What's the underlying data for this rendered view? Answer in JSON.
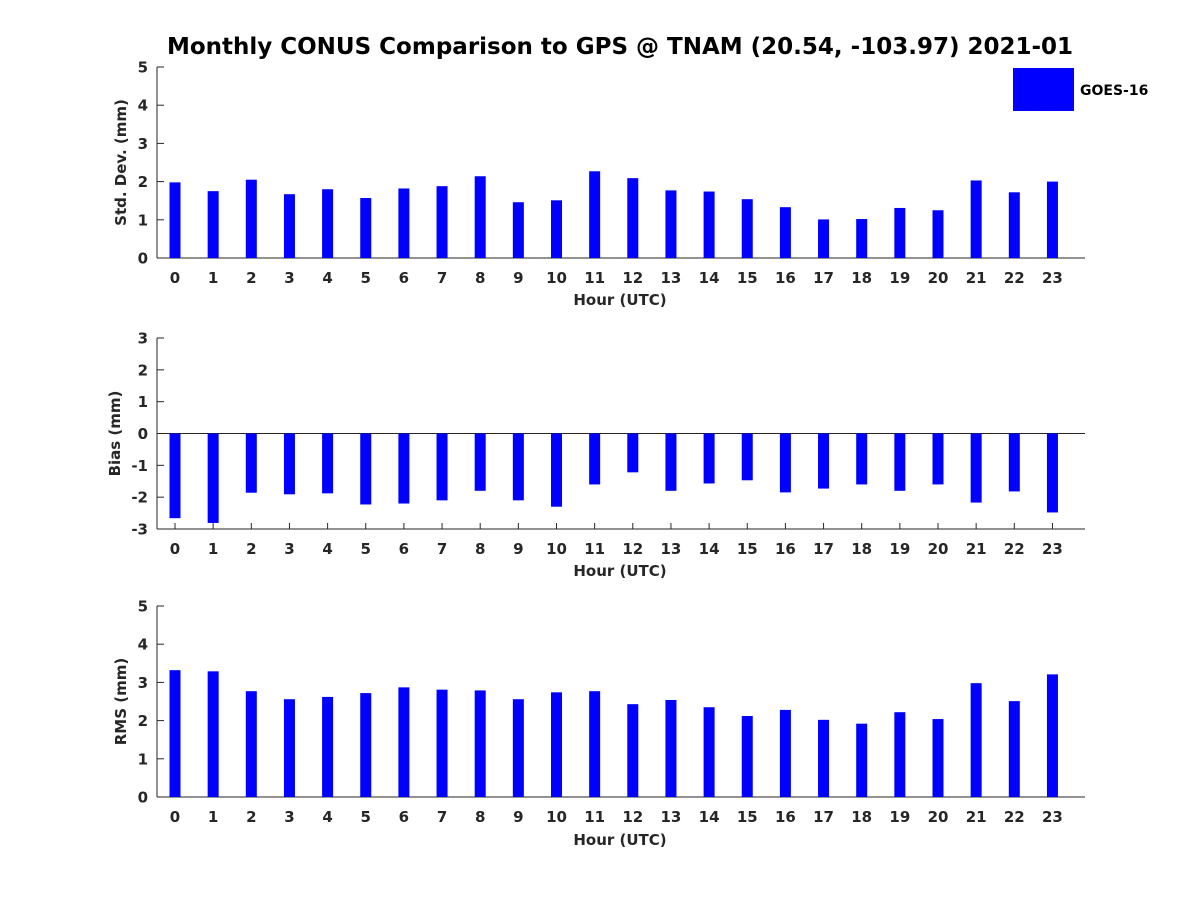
{
  "title": "Monthly CONUS Comparison to GPS @ TNAM (20.54, -103.97) 2021-01",
  "legend": {
    "label": "GOES-16",
    "color": "#0000ff"
  },
  "chart_data": [
    {
      "type": "bar",
      "xlabel": "Hour (UTC)",
      "ylabel": "Std. Dev. (mm)",
      "ylim": [
        0,
        5
      ],
      "yticks": [
        0,
        1,
        2,
        3,
        4,
        5
      ],
      "categories": [
        "0",
        "1",
        "2",
        "3",
        "4",
        "5",
        "6",
        "7",
        "8",
        "9",
        "10",
        "11",
        "12",
        "13",
        "14",
        "15",
        "16",
        "17",
        "18",
        "19",
        "20",
        "21",
        "22",
        "23"
      ],
      "series": [
        {
          "name": "GOES-16",
          "color": "#0000ff",
          "values": [
            1.98,
            1.75,
            2.05,
            1.67,
            1.8,
            1.57,
            1.82,
            1.88,
            2.14,
            1.46,
            1.51,
            2.27,
            2.09,
            1.77,
            1.74,
            1.54,
            1.33,
            1.01,
            1.02,
            1.31,
            1.25,
            2.03,
            1.72,
            2.0
          ]
        }
      ]
    },
    {
      "type": "bar",
      "xlabel": "Hour (UTC)",
      "ylabel": "Bias (mm)",
      "ylim": [
        -3,
        3
      ],
      "yticks": [
        -3,
        -2,
        -1,
        0,
        1,
        2,
        3
      ],
      "categories": [
        "0",
        "1",
        "2",
        "3",
        "4",
        "5",
        "6",
        "7",
        "8",
        "9",
        "10",
        "11",
        "12",
        "13",
        "14",
        "15",
        "16",
        "17",
        "18",
        "19",
        "20",
        "21",
        "22",
        "23"
      ],
      "series": [
        {
          "name": "GOES-16",
          "color": "#0000ff",
          "values": [
            -2.66,
            -2.81,
            -1.86,
            -1.91,
            -1.88,
            -2.23,
            -2.2,
            -2.1,
            -1.8,
            -2.1,
            -2.3,
            -1.6,
            -1.22,
            -1.8,
            -1.57,
            -1.47,
            -1.85,
            -1.73,
            -1.6,
            -1.8,
            -1.6,
            -2.17,
            -1.82,
            -2.48
          ]
        }
      ]
    },
    {
      "type": "bar",
      "xlabel": "Hour (UTC)",
      "ylabel": "RMS (mm)",
      "ylim": [
        0,
        5
      ],
      "yticks": [
        0,
        1,
        2,
        3,
        4,
        5
      ],
      "categories": [
        "0",
        "1",
        "2",
        "3",
        "4",
        "5",
        "6",
        "7",
        "8",
        "9",
        "10",
        "11",
        "12",
        "13",
        "14",
        "15",
        "16",
        "17",
        "18",
        "19",
        "20",
        "21",
        "22",
        "23"
      ],
      "series": [
        {
          "name": "GOES-16",
          "color": "#0000ff",
          "values": [
            3.32,
            3.29,
            2.77,
            2.56,
            2.62,
            2.72,
            2.87,
            2.81,
            2.79,
            2.56,
            2.74,
            2.77,
            2.43,
            2.54,
            2.35,
            2.12,
            2.28,
            2.02,
            1.92,
            2.22,
            2.04,
            2.98,
            2.51,
            3.21
          ]
        }
      ]
    }
  ]
}
